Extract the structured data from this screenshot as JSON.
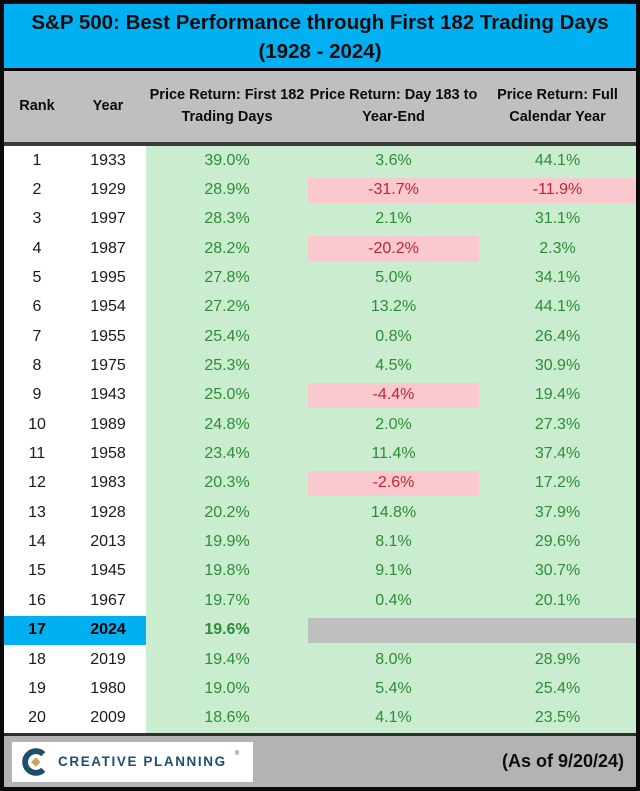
{
  "title": {
    "line1": "S&P 500: Best Performance through First 182 Trading Days",
    "line2": "(1928 - 2024)"
  },
  "table": {
    "columns": [
      "Rank",
      "Year",
      "Price Return: First 182 Trading Days",
      "Price Return: Day 183 to Year-End",
      "Price Return: Full Calendar Year"
    ],
    "rows": [
      {
        "rank": "1",
        "year": "1933",
        "first182": "39.0%",
        "day183": "3.6%",
        "full": "44.1%"
      },
      {
        "rank": "2",
        "year": "1929",
        "first182": "28.9%",
        "day183": "-31.7%",
        "full": "-11.9%",
        "day183_hl": "pink",
        "full_hl": "pink"
      },
      {
        "rank": "3",
        "year": "1997",
        "first182": "28.3%",
        "day183": "2.1%",
        "full": "31.1%"
      },
      {
        "rank": "4",
        "year": "1987",
        "first182": "28.2%",
        "day183": "-20.2%",
        "full": "2.3%",
        "day183_hl": "pink"
      },
      {
        "rank": "5",
        "year": "1995",
        "first182": "27.8%",
        "day183": "5.0%",
        "full": "34.1%"
      },
      {
        "rank": "6",
        "year": "1954",
        "first182": "27.2%",
        "day183": "13.2%",
        "full": "44.1%"
      },
      {
        "rank": "7",
        "year": "1955",
        "first182": "25.4%",
        "day183": "0.8%",
        "full": "26.4%"
      },
      {
        "rank": "8",
        "year": "1975",
        "first182": "25.3%",
        "day183": "4.5%",
        "full": "30.9%"
      },
      {
        "rank": "9",
        "year": "1943",
        "first182": "25.0%",
        "day183": "-4.4%",
        "full": "19.4%",
        "day183_hl": "pink"
      },
      {
        "rank": "10",
        "year": "1989",
        "first182": "24.8%",
        "day183": "2.0%",
        "full": "27.3%"
      },
      {
        "rank": "11",
        "year": "1958",
        "first182": "23.4%",
        "day183": "11.4%",
        "full": "37.4%"
      },
      {
        "rank": "12",
        "year": "1983",
        "first182": "20.3%",
        "day183": "-2.6%",
        "full": "17.2%",
        "day183_hl": "pink"
      },
      {
        "rank": "13",
        "year": "1928",
        "first182": "20.2%",
        "day183": "14.8%",
        "full": "37.9%"
      },
      {
        "rank": "14",
        "year": "2013",
        "first182": "19.9%",
        "day183": "8.1%",
        "full": "29.6%"
      },
      {
        "rank": "15",
        "year": "1945",
        "first182": "19.8%",
        "day183": "9.1%",
        "full": "30.7%"
      },
      {
        "rank": "16",
        "year": "1967",
        "first182": "19.7%",
        "day183": "0.4%",
        "full": "20.1%"
      },
      {
        "rank": "17",
        "year": "2024",
        "first182": "19.6%",
        "day183": "",
        "full": "",
        "current": true,
        "day183_hl": "gray",
        "full_hl": "gray"
      },
      {
        "rank": "18",
        "year": "2019",
        "first182": "19.4%",
        "day183": "8.0%",
        "full": "28.9%"
      },
      {
        "rank": "19",
        "year": "1980",
        "first182": "19.0%",
        "day183": "5.4%",
        "full": "25.4%"
      },
      {
        "rank": "20",
        "year": "2009",
        "first182": "18.6%",
        "day183": "4.1%",
        "full": "23.5%"
      }
    ]
  },
  "footer": {
    "logo_text": "CREATIVE PLANNING",
    "logo_trademark": "®",
    "as_of": "(As of 9/20/24)"
  },
  "colors": {
    "title_bg": "#00B0F0",
    "header_bg": "#BFBFBF",
    "green_bg": "#C9EDCE",
    "pink_bg": "#F9C9CF",
    "gray_block": "#BFBFBF",
    "green_text": "#2E8B3A",
    "red_text": "#C2242F",
    "footer_bg": "#B3B3B3",
    "logo_navy": "#1C4F6E",
    "logo_gold": "#C9A45C"
  },
  "chart_data": {
    "type": "table",
    "title": "S&P 500: Best Performance through First 182 Trading Days (1928 - 2024)",
    "columns": [
      "Rank",
      "Year",
      "Price Return: First 182 Trading Days (%)",
      "Price Return: Day 183 to Year-End (%)",
      "Price Return: Full Calendar Year (%)"
    ],
    "rows": [
      [
        1,
        1933,
        39.0,
        3.6,
        44.1
      ],
      [
        2,
        1929,
        28.9,
        -31.7,
        -11.9
      ],
      [
        3,
        1997,
        28.3,
        2.1,
        31.1
      ],
      [
        4,
        1987,
        28.2,
        -20.2,
        2.3
      ],
      [
        5,
        1995,
        27.8,
        5.0,
        34.1
      ],
      [
        6,
        1954,
        27.2,
        13.2,
        44.1
      ],
      [
        7,
        1955,
        25.4,
        0.8,
        26.4
      ],
      [
        8,
        1975,
        25.3,
        4.5,
        30.9
      ],
      [
        9,
        1943,
        25.0,
        -4.4,
        19.4
      ],
      [
        10,
        1989,
        24.8,
        2.0,
        27.3
      ],
      [
        11,
        1958,
        23.4,
        11.4,
        37.4
      ],
      [
        12,
        1983,
        20.3,
        -2.6,
        17.2
      ],
      [
        13,
        1928,
        20.2,
        14.8,
        37.9
      ],
      [
        14,
        2013,
        19.9,
        8.1,
        29.6
      ],
      [
        15,
        1945,
        19.8,
        9.1,
        30.7
      ],
      [
        16,
        1967,
        19.7,
        0.4,
        20.1
      ],
      [
        17,
        2024,
        19.6,
        null,
        null
      ],
      [
        18,
        2019,
        19.4,
        8.0,
        28.9
      ],
      [
        19,
        1980,
        19.0,
        5.4,
        25.4
      ],
      [
        20,
        2009,
        18.6,
        4.1,
        23.5
      ]
    ],
    "annotations": "Negative return cells highlighted pink; 2024 row rank/year highlighted cyan with gray blanks for unfinished periods; as of 9/20/24"
  }
}
